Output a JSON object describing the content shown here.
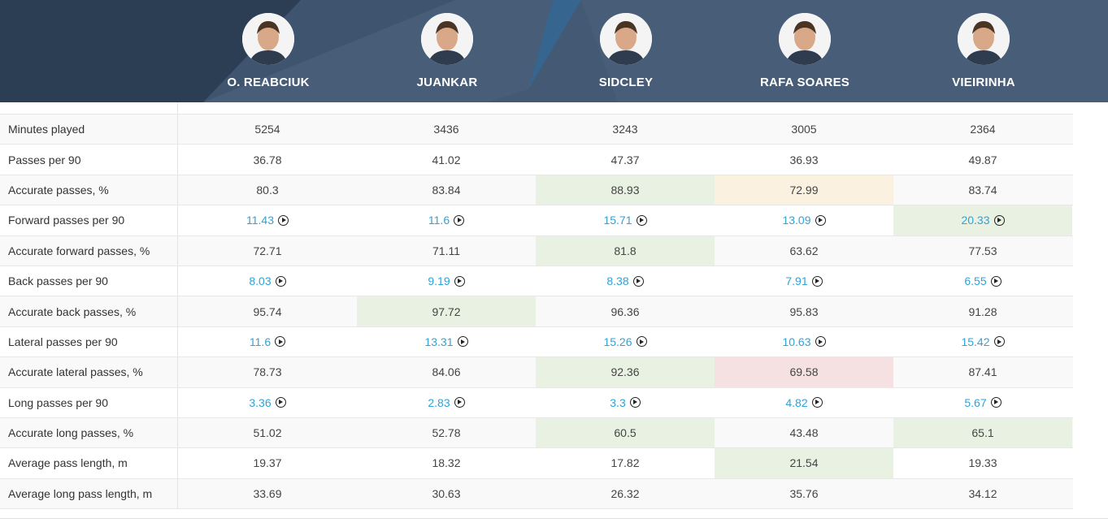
{
  "players": [
    {
      "name": "O. REABCIUK",
      "avatar": "player-photo"
    },
    {
      "name": "JUANKAR",
      "avatar": "player-photo"
    },
    {
      "name": "SIDCLEY",
      "avatar": "player-photo"
    },
    {
      "name": "RAFA SOARES",
      "avatar": "player-photo"
    },
    {
      "name": "VIEIRINHA",
      "avatar": "player-photo"
    }
  ],
  "colors": {
    "header_bg": "#475d78",
    "header_dark": "#2c3e54",
    "link": "#2ea3d8",
    "highlight_green": "#e9f1e2",
    "highlight_yellow": "#fbf1e0",
    "highlight_red": "#f5e1e1"
  },
  "rows": [
    {
      "label": "Minutes played",
      "linked": false,
      "cells": [
        {
          "v": "5254",
          "hl": ""
        },
        {
          "v": "3436",
          "hl": ""
        },
        {
          "v": "3243",
          "hl": ""
        },
        {
          "v": "3005",
          "hl": ""
        },
        {
          "v": "2364",
          "hl": ""
        }
      ]
    },
    {
      "label": "Passes per 90",
      "linked": false,
      "cells": [
        {
          "v": "36.78",
          "hl": ""
        },
        {
          "v": "41.02",
          "hl": ""
        },
        {
          "v": "47.37",
          "hl": ""
        },
        {
          "v": "36.93",
          "hl": ""
        },
        {
          "v": "49.87",
          "hl": ""
        }
      ]
    },
    {
      "label": "Accurate passes, %",
      "linked": false,
      "cells": [
        {
          "v": "80.3",
          "hl": ""
        },
        {
          "v": "83.84",
          "hl": ""
        },
        {
          "v": "88.93",
          "hl": "g"
        },
        {
          "v": "72.99",
          "hl": "y"
        },
        {
          "v": "83.74",
          "hl": ""
        }
      ]
    },
    {
      "label": "Forward passes per 90",
      "linked": true,
      "cells": [
        {
          "v": "11.43",
          "hl": ""
        },
        {
          "v": "11.6",
          "hl": ""
        },
        {
          "v": "15.71",
          "hl": ""
        },
        {
          "v": "13.09",
          "hl": ""
        },
        {
          "v": "20.33",
          "hl": "g"
        }
      ]
    },
    {
      "label": "Accurate forward passes, %",
      "linked": false,
      "cells": [
        {
          "v": "72.71",
          "hl": ""
        },
        {
          "v": "71.11",
          "hl": ""
        },
        {
          "v": "81.8",
          "hl": "g"
        },
        {
          "v": "63.62",
          "hl": ""
        },
        {
          "v": "77.53",
          "hl": ""
        }
      ]
    },
    {
      "label": "Back passes per 90",
      "linked": true,
      "cells": [
        {
          "v": "8.03",
          "hl": ""
        },
        {
          "v": "9.19",
          "hl": ""
        },
        {
          "v": "8.38",
          "hl": ""
        },
        {
          "v": "7.91",
          "hl": ""
        },
        {
          "v": "6.55",
          "hl": ""
        }
      ]
    },
    {
      "label": "Accurate back passes, %",
      "linked": false,
      "cells": [
        {
          "v": "95.74",
          "hl": ""
        },
        {
          "v": "97.72",
          "hl": "g"
        },
        {
          "v": "96.36",
          "hl": ""
        },
        {
          "v": "95.83",
          "hl": ""
        },
        {
          "v": "91.28",
          "hl": ""
        }
      ]
    },
    {
      "label": "Lateral passes per 90",
      "linked": true,
      "cells": [
        {
          "v": "11.6",
          "hl": ""
        },
        {
          "v": "13.31",
          "hl": ""
        },
        {
          "v": "15.26",
          "hl": ""
        },
        {
          "v": "10.63",
          "hl": ""
        },
        {
          "v": "15.42",
          "hl": ""
        }
      ]
    },
    {
      "label": "Accurate lateral passes, %",
      "linked": false,
      "cells": [
        {
          "v": "78.73",
          "hl": ""
        },
        {
          "v": "84.06",
          "hl": ""
        },
        {
          "v": "92.36",
          "hl": "g"
        },
        {
          "v": "69.58",
          "hl": "r"
        },
        {
          "v": "87.41",
          "hl": ""
        }
      ]
    },
    {
      "label": "Long passes per 90",
      "linked": true,
      "cells": [
        {
          "v": "3.36",
          "hl": ""
        },
        {
          "v": "2.83",
          "hl": ""
        },
        {
          "v": "3.3",
          "hl": ""
        },
        {
          "v": "4.82",
          "hl": ""
        },
        {
          "v": "5.67",
          "hl": ""
        }
      ]
    },
    {
      "label": "Accurate long passes, %",
      "linked": false,
      "cells": [
        {
          "v": "51.02",
          "hl": ""
        },
        {
          "v": "52.78",
          "hl": ""
        },
        {
          "v": "60.5",
          "hl": "g"
        },
        {
          "v": "43.48",
          "hl": ""
        },
        {
          "v": "65.1",
          "hl": "g"
        }
      ]
    },
    {
      "label": "Average pass length, m",
      "linked": false,
      "cells": [
        {
          "v": "19.37",
          "hl": ""
        },
        {
          "v": "18.32",
          "hl": ""
        },
        {
          "v": "17.82",
          "hl": ""
        },
        {
          "v": "21.54",
          "hl": "g"
        },
        {
          "v": "19.33",
          "hl": ""
        }
      ]
    },
    {
      "label": "Average long pass length, m",
      "linked": false,
      "cells": [
        {
          "v": "33.69",
          "hl": ""
        },
        {
          "v": "30.63",
          "hl": ""
        },
        {
          "v": "26.32",
          "hl": ""
        },
        {
          "v": "35.76",
          "hl": ""
        },
        {
          "v": "34.12",
          "hl": ""
        }
      ]
    }
  ]
}
